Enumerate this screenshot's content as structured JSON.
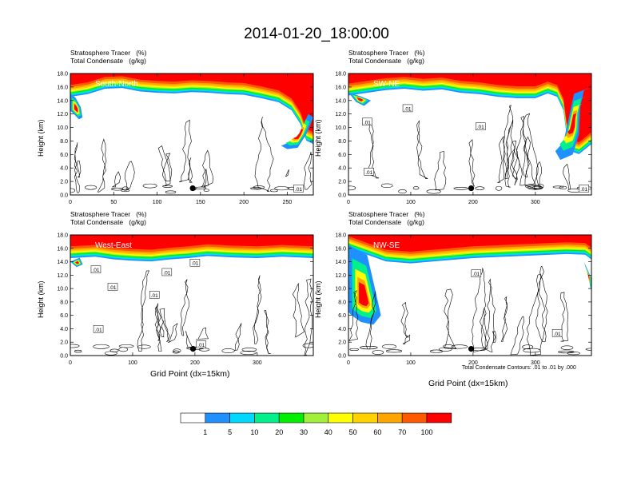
{
  "title": "2014-01-20_18:00:00",
  "panel_header": {
    "line1": "Stratosphere Tracer   (%)",
    "line2": "Total Condensate   (g/kg)"
  },
  "y_axis_label": "Height (km)",
  "x_axis_label": "Grid Point (dx=15km)",
  "contour_note": "Total Condensate Contours: .01 to .01 by .000",
  "colors": {
    "levels": [
      "#ffffff",
      "#1e90ff",
      "#00d8ff",
      "#00f08c",
      "#00f000",
      "#a0f03c",
      "#ffff00",
      "#ffd200",
      "#ffa500",
      "#ff5a00",
      "#ff0000"
    ]
  },
  "chart_data": {
    "type": "heatmap",
    "colorbar": {
      "labels": [
        "1",
        "5",
        "10",
        "20",
        "30",
        "40",
        "50",
        "60",
        "70",
        "100"
      ],
      "colors": [
        "#ffffff",
        "#1e90ff",
        "#00d8ff",
        "#00f08c",
        "#00f000",
        "#a0f03c",
        "#ffff00",
        "#ffd200",
        "#ffa500",
        "#ff5a00",
        "#ff0000"
      ]
    },
    "panels": [
      {
        "label": "South-North",
        "xlim": [
          0,
          280
        ],
        "ylim": [
          0,
          18
        ],
        "xticks": [
          "0",
          "50",
          "100",
          "150",
          "200",
          "250"
        ],
        "xtick_values": [
          0,
          50,
          100,
          150,
          200,
          250
        ],
        "yticks": [
          "0.0",
          "2.0",
          "4.0",
          "6.0",
          "8.0",
          "10.0",
          "12.0",
          "14.0",
          "16.0",
          "18.0"
        ],
        "marker": {
          "x": 141,
          "y": 1.0
        },
        "contour_labels": [
          ".01"
        ],
        "contour_label_positions": [
          {
            "x": 263,
            "y": 0.9
          }
        ],
        "tropopause": [
          [
            0,
            15.0
          ],
          [
            20,
            15.4
          ],
          [
            40,
            16.2
          ],
          [
            60,
            16.3
          ],
          [
            80,
            15.8
          ],
          [
            100,
            15.6
          ],
          [
            120,
            15.5
          ],
          [
            140,
            15.7
          ],
          [
            160,
            15.6
          ],
          [
            180,
            15.4
          ],
          [
            200,
            15.3
          ],
          [
            220,
            14.8
          ],
          [
            240,
            14.2
          ],
          [
            255,
            13.0
          ],
          [
            265,
            11.0
          ],
          [
            272,
            8.5
          ],
          [
            280,
            8.0
          ]
        ],
        "intrusions": [
          {
            "pts": [
              [
                0,
                15
              ],
              [
                6,
                14.4
              ],
              [
                12,
                13.0
              ],
              [
                14,
                11.5
              ],
              [
                10,
                11.2
              ],
              [
                4,
                12.0
              ],
              [
                0,
                12.5
              ]
            ]
          },
          {
            "pts": [
              [
                280,
                11.5
              ],
              [
                272,
                9.0
              ],
              [
                262,
                7.0
              ],
              [
                250,
                6.8
              ],
              [
                243,
                7.3
              ],
              [
                256,
                8.0
              ],
              [
                266,
                9.5
              ],
              [
                274,
                12.0
              ]
            ]
          }
        ]
      },
      {
        "label": "SW-NE",
        "xlim": [
          0,
          390
        ],
        "ylim": [
          0,
          18
        ],
        "xticks": [
          "0",
          "100",
          "200",
          "300"
        ],
        "xtick_values": [
          0,
          100,
          200,
          300
        ],
        "yticks": [
          "0.0",
          "2.0",
          "4.0",
          "6.0",
          "8.0",
          "10.0",
          "12.0",
          "14.0",
          "16.0",
          "18.0"
        ],
        "marker": {
          "x": 197,
          "y": 1.0
        },
        "contour_labels": [
          ".01",
          ".01",
          ".01",
          ".01",
          ".01"
        ],
        "contour_label_positions": [
          {
            "x": 30,
            "y": 10.8
          },
          {
            "x": 95,
            "y": 12.8
          },
          {
            "x": 212,
            "y": 10.1
          },
          {
            "x": 33,
            "y": 3.4
          },
          {
            "x": 378,
            "y": 0.9
          }
        ],
        "tropopause": [
          [
            0,
            15.2
          ],
          [
            30,
            15.6
          ],
          [
            60,
            16.0
          ],
          [
            90,
            16.2
          ],
          [
            120,
            15.9
          ],
          [
            150,
            16.1
          ],
          [
            180,
            15.6
          ],
          [
            210,
            15.4
          ],
          [
            240,
            15.0
          ],
          [
            270,
            14.8
          ],
          [
            300,
            14.8
          ],
          [
            320,
            15.5
          ],
          [
            335,
            15.0
          ],
          [
            345,
            13.0
          ],
          [
            350,
            9.5
          ],
          [
            355,
            7.0
          ],
          [
            370,
            6.5
          ],
          [
            390,
            8.0
          ]
        ],
        "intrusions": [
          {
            "pts": [
              [
                0,
                15.2
              ],
              [
                12,
                13.8
              ],
              [
                25,
                13.2
              ],
              [
                36,
                14.0
              ],
              [
                20,
                14.6
              ]
            ]
          },
          {
            "pts": [
              [
                390,
                16
              ],
              [
                378,
                15.5
              ],
              [
                372,
                13.0
              ],
              [
                370,
                9.0
              ],
              [
                360,
                6.0
              ],
              [
                340,
                5.2
              ],
              [
                332,
                6.5
              ],
              [
                345,
                7.8
              ],
              [
                355,
                12.0
              ],
              [
                362,
                15.0
              ]
            ]
          }
        ]
      },
      {
        "label": "West-East",
        "xlim": [
          0,
          390
        ],
        "ylim": [
          0,
          18
        ],
        "xticks": [
          "0",
          "100",
          "200",
          "300"
        ],
        "xtick_values": [
          0,
          100,
          200,
          300
        ],
        "yticks": [
          "0.0",
          "2.0",
          "4.0",
          "6.0",
          "8.0",
          "10.0",
          "12.0",
          "14.0",
          "16.0",
          "18.0"
        ],
        "marker": {
          "x": 197,
          "y": 1.0
        },
        "contour_labels": [
          ".01",
          ".01",
          ".01",
          ".01",
          ".01",
          ".01",
          ".01"
        ],
        "contour_label_positions": [
          {
            "x": 41,
            "y": 12.8
          },
          {
            "x": 68,
            "y": 10.2
          },
          {
            "x": 155,
            "y": 12.4
          },
          {
            "x": 200,
            "y": 13.8
          },
          {
            "x": 135,
            "y": 9.0
          },
          {
            "x": 45,
            "y": 3.9
          },
          {
            "x": 210,
            "y": 1.6
          }
        ],
        "tropopause": [
          [
            0,
            15.0
          ],
          [
            40,
            15.2
          ],
          [
            70,
            14.8
          ],
          [
            100,
            14.6
          ],
          [
            130,
            14.5
          ],
          [
            160,
            14.8
          ],
          [
            190,
            15.0
          ],
          [
            220,
            15.3
          ],
          [
            260,
            15.1
          ],
          [
            300,
            15.0
          ],
          [
            340,
            15.2
          ],
          [
            390,
            15.0
          ]
        ],
        "intrusions": [
          {
            "pts": [
              [
                0,
                14.0
              ],
              [
                10,
                13.2
              ],
              [
                20,
                13.6
              ],
              [
                15,
                14.6
              ]
            ]
          }
        ]
      },
      {
        "label": "NW-SE",
        "xlim": [
          0,
          390
        ],
        "ylim": [
          0,
          18
        ],
        "xticks": [
          "0",
          "100",
          "200",
          "300"
        ],
        "xtick_values": [
          0,
          100,
          200,
          300
        ],
        "yticks": [
          "0.0",
          "2.0",
          "4.0",
          "6.0",
          "8.0",
          "10.0",
          "12.0",
          "14.0",
          "16.0",
          "18.0"
        ],
        "marker": {
          "x": 197,
          "y": 1.0
        },
        "contour_labels": [
          ".01",
          ".01"
        ],
        "contour_label_positions": [
          {
            "x": 205,
            "y": 12.2
          },
          {
            "x": 335,
            "y": 3.3
          }
        ],
        "tropopause": [
          [
            0,
            16.5
          ],
          [
            60,
            14.5
          ],
          [
            100,
            14.2
          ],
          [
            150,
            14.6
          ],
          [
            200,
            15.0
          ],
          [
            250,
            15.2
          ],
          [
            300,
            15.4
          ],
          [
            350,
            15.6
          ],
          [
            380,
            15.5
          ],
          [
            390,
            14.8
          ]
        ],
        "intrusions": [
          {
            "pts": [
              [
                0,
                16.5
              ],
              [
                30,
                15.0
              ],
              [
                45,
                9.0
              ],
              [
                52,
                6.0
              ],
              [
                40,
                4.6
              ],
              [
                20,
                5.0
              ],
              [
                5,
                6.0
              ],
              [
                0,
                6.5
              ]
            ]
          },
          {
            "pts": [
              [
                378,
                14.0
              ],
              [
                390,
                11.5
              ],
              [
                390,
                9.5
              ],
              [
                383,
                12.5
              ]
            ]
          }
        ]
      }
    ]
  }
}
